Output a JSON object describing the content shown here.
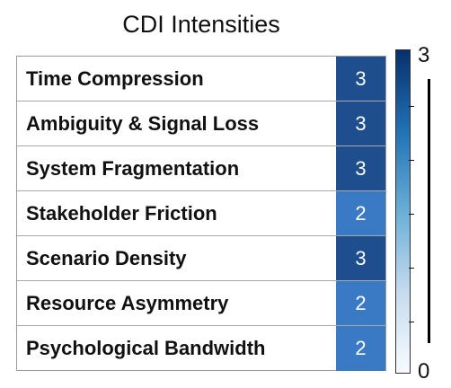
{
  "chart_data": {
    "type": "heatmap",
    "title": "CDI Intensities",
    "rows": [
      {
        "label": "Time Compression",
        "value": 3
      },
      {
        "label": "Ambiguity & Signal Loss",
        "value": 3
      },
      {
        "label": "System Fragmentation",
        "value": 3
      },
      {
        "label": "Stakeholder Friction",
        "value": 2
      },
      {
        "label": "Scenario Density",
        "value": 3
      },
      {
        "label": "Resource Asymmetry",
        "value": 2
      },
      {
        "label": "Psychological Bandwidth",
        "value": 2
      }
    ],
    "colorbar": {
      "min": 0,
      "max": 3,
      "min_label": "0",
      "max_label": "3",
      "colormap": "Blues"
    },
    "colors": {
      "value_3": "#1f4e8e",
      "value_2": "#3a7ac4"
    }
  }
}
